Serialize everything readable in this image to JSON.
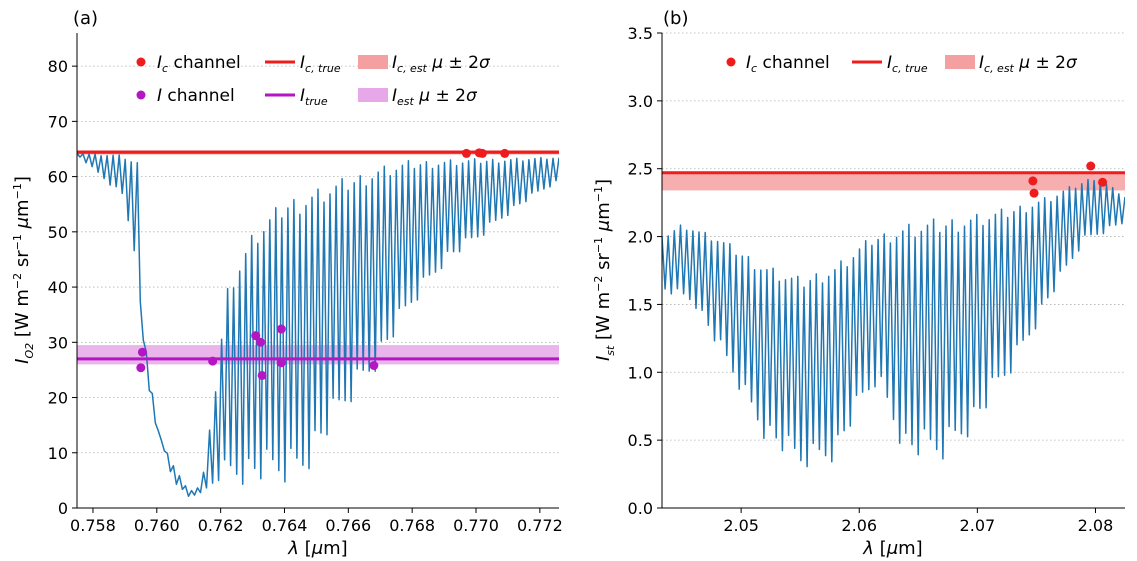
{
  "chart_data": [
    {
      "type": "line",
      "panel_label": "(a)",
      "xlabel": "λ [μm]",
      "ylabel": "I_O2 [W m^-2 sr^-1 μm^-1]",
      "xlim": [
        0.7575,
        0.7726
      ],
      "ylim": [
        0,
        86
      ],
      "xticks": [
        0.758,
        0.76,
        0.762,
        0.764,
        0.766,
        0.768,
        0.77,
        0.772
      ],
      "xtick_labels": [
        "0.758",
        "0.760",
        "0.762",
        "0.764",
        "0.766",
        "0.768",
        "0.770",
        "0.772"
      ],
      "yticks": [
        0,
        10,
        20,
        30,
        40,
        50,
        60,
        70,
        80
      ],
      "ytick_labels": [
        "0",
        "10",
        "20",
        "30",
        "40",
        "50",
        "60",
        "70",
        "80"
      ],
      "grid": "horizontal dotted",
      "legend_placement": "top",
      "series": [
        {
          "name": "I_c channel",
          "kind": "points",
          "color": "#ee1c1c",
          "points": [
            [
              0.7697,
              64.2
            ],
            [
              0.7701,
              64.3
            ],
            [
              0.7702,
              64.2
            ],
            [
              0.7709,
              64.2
            ]
          ]
        },
        {
          "name": "I_c,true",
          "kind": "hline",
          "color": "#ee1c1c",
          "value": 64.4
        },
        {
          "name": "I_c,est μ ± 2σ",
          "kind": "band",
          "color": "#f5a0a0",
          "range": [
            64.0,
            64.8
          ]
        },
        {
          "name": "I channel",
          "kind": "points",
          "color": "#b316c2",
          "points": [
            [
              0.75955,
              28.2
            ],
            [
              0.7595,
              25.4
            ],
            [
              0.76175,
              26.6
            ],
            [
              0.7631,
              31.2
            ],
            [
              0.76325,
              30.0
            ],
            [
              0.7633,
              24.0
            ],
            [
              0.7639,
              26.3
            ],
            [
              0.7639,
              32.4
            ],
            [
              0.7668,
              25.8
            ]
          ]
        },
        {
          "name": "I_true",
          "kind": "hline",
          "color": "#b316c2",
          "value": 27.0
        },
        {
          "name": "I_est μ ± 2σ",
          "kind": "band",
          "color": "#e6a8e8",
          "range": [
            26.0,
            29.5
          ]
        },
        {
          "name": "",
          "kind": "spectrum",
          "color": "#1f77b4",
          "envelope": [
            [
              0.7575,
              64.2
            ],
            [
              0.7588,
              64.0
            ],
            [
              0.7594,
              63.0
            ],
            [
              0.7596,
              26.0
            ],
            [
              0.76,
              14.0
            ],
            [
              0.7605,
              8.0
            ],
            [
              0.761,
              3.0
            ],
            [
              0.7614,
              4.0
            ],
            [
              0.7618,
              20.0
            ],
            [
              0.7622,
              40.0
            ],
            [
              0.763,
              50.0
            ],
            [
              0.764,
              56.0
            ],
            [
              0.765,
              58.0
            ],
            [
              0.766,
              60.0
            ],
            [
              0.767,
              62.0
            ],
            [
              0.768,
              63.0
            ],
            [
              0.7726,
              63.5
            ]
          ],
          "minima": [
            [
              0.7575,
              64.0
            ],
            [
              0.759,
              56.0
            ],
            [
              0.76,
              15.0
            ],
            [
              0.7605,
              5.0
            ],
            [
              0.761,
              2.0
            ],
            [
              0.7616,
              3.0
            ],
            [
              0.762,
              5.0
            ],
            [
              0.763,
              4.0
            ],
            [
              0.764,
              4.0
            ],
            [
              0.7645,
              5.0
            ],
            [
              0.765,
              9.0
            ],
            [
              0.766,
              18.0
            ],
            [
              0.767,
              26.0
            ],
            [
              0.768,
              36.0
            ],
            [
              0.769,
              44.0
            ],
            [
              0.77,
              48.0
            ],
            [
              0.771,
              53.0
            ],
            [
              0.772,
              57.0
            ],
            [
              0.7726,
              59.0
            ]
          ]
        }
      ]
    },
    {
      "type": "line",
      "panel_label": "(b)",
      "xlabel": "λ [μm]",
      "ylabel": "I_st [W m^-2 sr^-1 μm^-1]",
      "xlim": [
        2.0433,
        2.0825
      ],
      "ylim": [
        0,
        3.5
      ],
      "xticks": [
        2.05,
        2.06,
        2.07,
        2.08
      ],
      "xtick_labels": [
        "2.05",
        "2.06",
        "2.07",
        "2.08"
      ],
      "yticks": [
        0.0,
        0.5,
        1.0,
        1.5,
        2.0,
        2.5,
        3.0,
        3.5
      ],
      "ytick_labels": [
        "0.0",
        "0.5",
        "1.0",
        "1.5",
        "2.0",
        "2.5",
        "3.0",
        "3.5"
      ],
      "grid": "horizontal dotted",
      "legend_placement": "top",
      "series": [
        {
          "name": "I_c channel",
          "kind": "points",
          "color": "#ee1c1c",
          "points": [
            [
              2.0747,
              2.41
            ],
            [
              2.0748,
              2.32
            ],
            [
              2.0796,
              2.52
            ],
            [
              2.0806,
              2.4
            ]
          ]
        },
        {
          "name": "I_c,true",
          "kind": "hline",
          "color": "#ee1c1c",
          "value": 2.47
        },
        {
          "name": "I_c,est μ ± 2σ",
          "kind": "band",
          "color": "#f5a0a0",
          "range": [
            2.34,
            2.47
          ]
        },
        {
          "name": "",
          "kind": "spectrum",
          "color": "#1f77b4",
          "envelope": [
            [
              2.0433,
              2.0
            ],
            [
              2.045,
              2.1
            ],
            [
              2.048,
              2.0
            ],
            [
              2.052,
              1.8
            ],
            [
              2.055,
              1.7
            ],
            [
              2.058,
              1.8
            ],
            [
              2.061,
              2.0
            ],
            [
              2.064,
              2.1
            ],
            [
              2.068,
              2.15
            ],
            [
              2.072,
              2.2
            ],
            [
              2.076,
              2.3
            ],
            [
              2.08,
              2.45
            ],
            [
              2.0825,
              2.3
            ]
          ],
          "minima": [
            [
              2.0433,
              1.6
            ],
            [
              2.046,
              1.5
            ],
            [
              2.049,
              1.0
            ],
            [
              2.052,
              0.5
            ],
            [
              2.055,
              0.27
            ],
            [
              2.058,
              0.35
            ],
            [
              2.06,
              0.7
            ],
            [
              2.0615,
              0.9
            ],
            [
              2.064,
              0.35
            ],
            [
              2.067,
              0.33
            ],
            [
              2.07,
              0.6
            ],
            [
              2.073,
              1.0
            ],
            [
              2.076,
              1.5
            ],
            [
              2.079,
              1.95
            ],
            [
              2.0825,
              2.1
            ]
          ]
        }
      ]
    }
  ]
}
